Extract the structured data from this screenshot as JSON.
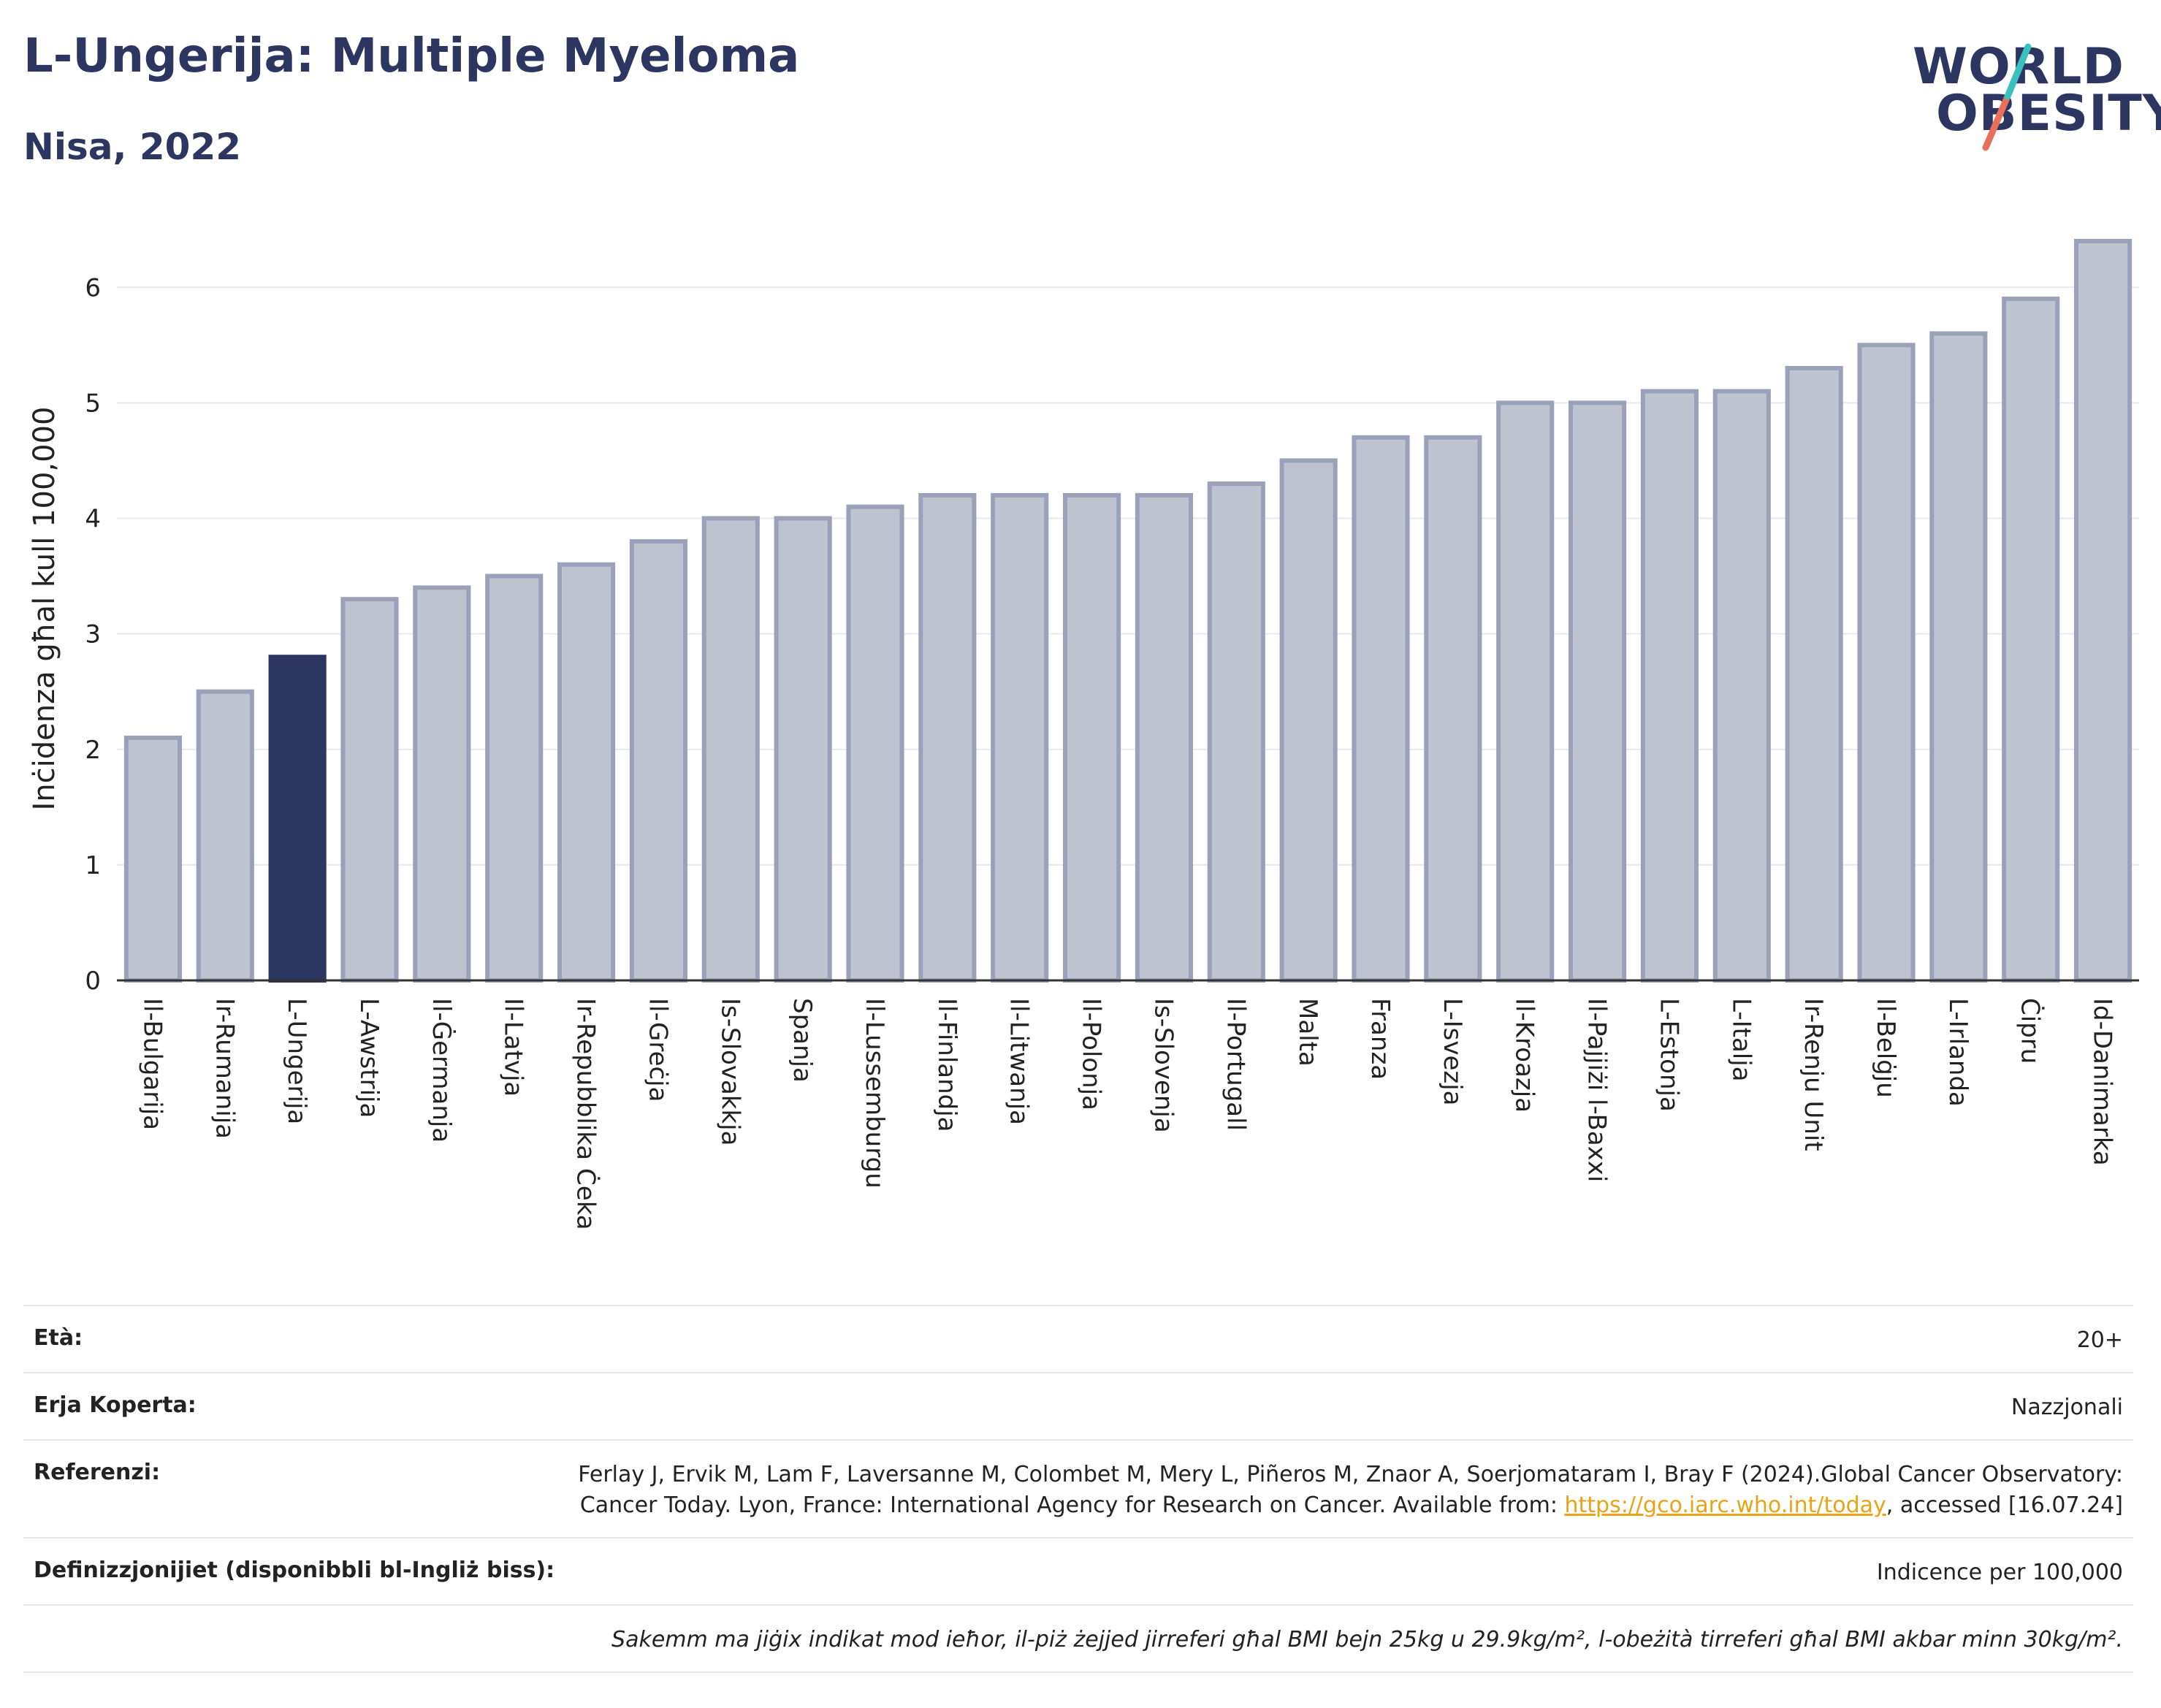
{
  "header": {
    "title": "L-Ungerija: Multiple Myeloma",
    "subtitle": "Nisa, 2022"
  },
  "logo": {
    "line1": "WORLD",
    "line2": "OBESITY"
  },
  "colors": {
    "highlight": "#2d3660",
    "bar": "#bfc3d0",
    "bar_border": "#9aa1b9",
    "grid": "#e6e9f0"
  },
  "chart_data": {
    "type": "bar",
    "ylabel": "Inċidenza għal kull 100,000",
    "ylim": [
      0,
      6.4
    ],
    "yticks": [
      0,
      1,
      2,
      3,
      4,
      5,
      6
    ],
    "highlight": "L-Ungerija",
    "categories": [
      "Il-Bulgarija",
      "Ir-Rumanija",
      "L-Ungerija",
      "L-Awstrija",
      "Il-Ġermanja",
      "Il-Latvja",
      "Ir-Repubblika Ċeka",
      "Il-Greċja",
      "Is-Slovakkja",
      "Spanja",
      "Il-Lussemburgu",
      "Il-Finlandja",
      "Il-Litwanja",
      "Il-Polonja",
      "Is-Slovenja",
      "Il-Portugall",
      "Malta",
      "Franza",
      "L-Isvezja",
      "Il-Kroazja",
      "Il-Pajjiżi l-Baxxi",
      "L-Estonja",
      "L-Italja",
      "Ir-Renju Unit",
      "Il-Belġju",
      "L-Irlanda",
      "Ċipru",
      "Id-Danimarka"
    ],
    "values": [
      2.1,
      2.5,
      2.8,
      3.3,
      3.4,
      3.5,
      3.6,
      3.8,
      4.0,
      4.0,
      4.1,
      4.2,
      4.2,
      4.2,
      4.2,
      4.3,
      4.5,
      4.7,
      4.7,
      5.0,
      5.0,
      5.1,
      5.1,
      5.3,
      5.5,
      5.6,
      5.9,
      6.4
    ],
    "grid": true
  },
  "info": {
    "age_label": "Età:",
    "age_value": "20+",
    "area_label": "Erja Koperta:",
    "area_value": "Nazzjonali",
    "ref_label": "Referenzi:",
    "ref_text_1": "Ferlay J, Ervik M, Lam F, Laversanne M, Colombet M, Mery L, Piñeros M, Znaor A, Soerjomataram I, Bray F (2024).Global Cancer Observatory: Cancer Today. Lyon, France: International Agency for Research on Cancer. Available from: ",
    "ref_link": "https://gco.iarc.who.int/today",
    "ref_text_2": ", accessed [16.07.24]",
    "def_label": "Definizzjonijiet (disponibbli bl-Ingliż biss):",
    "def_value": "Indicence per 100,000",
    "note": "Sakemm ma jiġix indikat mod ieħor, il-piż żejjed jirreferi għal BMI bejn 25kg u 29.9kg/m², l-obeżità tirreferi għal BMI akbar minn 30kg/m²."
  }
}
